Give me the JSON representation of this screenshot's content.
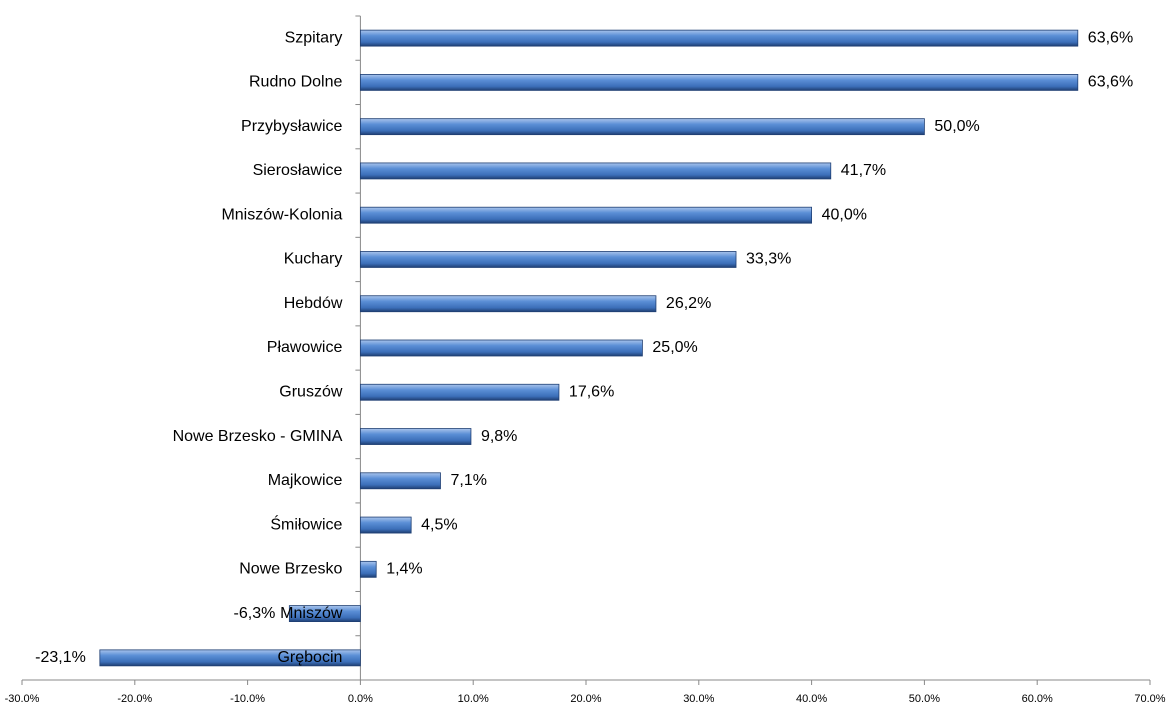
{
  "chart_data": {
    "type": "barh",
    "categories": [
      "Szpitary",
      "Rudno Dolne",
      "Przybysławice",
      "Sierosławice",
      "Mniszów-Kolonia",
      "Kuchary",
      "Hebdów",
      "Pławowice",
      "Gruszów",
      "Nowe Brzesko - GMINA",
      "Majkowice",
      "Śmiłowice",
      "Nowe Brzesko",
      "Mniszów",
      "Grębocin"
    ],
    "values": [
      63.6,
      63.6,
      50.0,
      41.7,
      40.0,
      33.3,
      26.2,
      25.0,
      17.6,
      9.8,
      7.1,
      4.5,
      1.4,
      -6.3,
      -23.1
    ],
    "value_labels": [
      "63,6%",
      "63,6%",
      "50,0%",
      "41,7%",
      "40,0%",
      "33,3%",
      "26,2%",
      "25,0%",
      "17,6%",
      "9,8%",
      "7,1%",
      "4,5%",
      "1,4%",
      "-6,3%",
      "-23,1%"
    ],
    "color": "#4f81bd",
    "xlim": [
      -30,
      70
    ],
    "xticks": [
      {
        "value": -30,
        "label": "-30.0%"
      },
      {
        "value": -20,
        "label": "-20.0%"
      },
      {
        "value": -10,
        "label": "-10.0%"
      },
      {
        "value": 0,
        "label": "0.0%"
      },
      {
        "value": 10,
        "label": "10.0%"
      },
      {
        "value": 20,
        "label": "20.0%"
      },
      {
        "value": 30,
        "label": "30.0%"
      },
      {
        "value": 40,
        "label": "40.0%"
      },
      {
        "value": 50,
        "label": "50.0%"
      },
      {
        "value": 60,
        "label": "60.0%"
      },
      {
        "value": 70,
        "label": "70.0%"
      }
    ]
  }
}
